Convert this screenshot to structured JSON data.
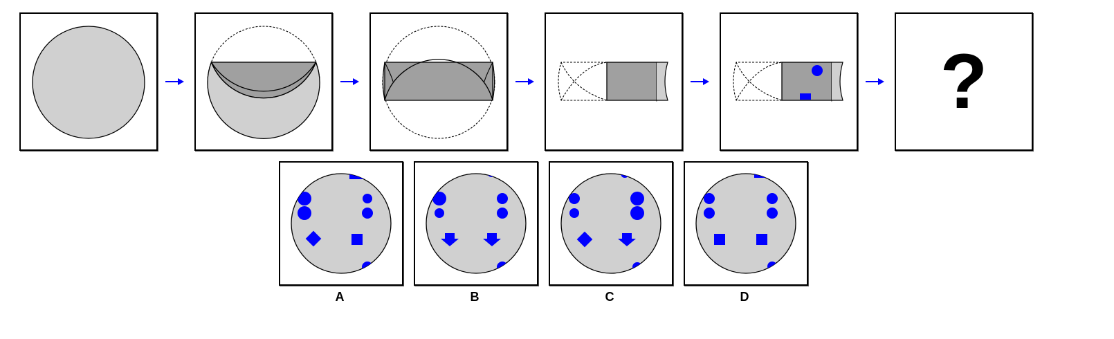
{
  "question_mark": "?",
  "options": [
    {
      "label": "A"
    },
    {
      "label": "B"
    },
    {
      "label": "C"
    },
    {
      "label": "D"
    }
  ],
  "colors": {
    "light_gray": "#d0d0d0",
    "dark_gray": "#a0a0a0",
    "blue": "#0000ff",
    "stroke": "#000000"
  },
  "icons": [
    "right-arrow-icon",
    "circle-icon",
    "blue-dot-icon",
    "blue-square-icon",
    "blue-diamond-icon",
    "blue-down-arrow-icon"
  ]
}
